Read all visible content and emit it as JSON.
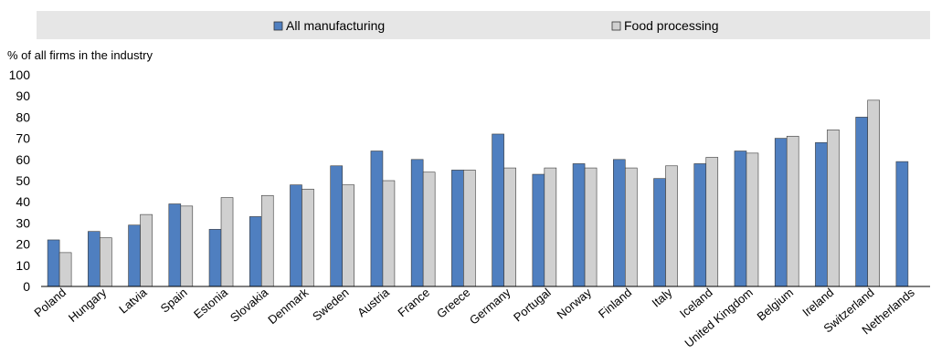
{
  "chart_data": {
    "type": "bar",
    "ylabel": "% of all firms in the industry",
    "ylim": [
      0,
      100
    ],
    "yticks": [
      0,
      10,
      20,
      30,
      40,
      50,
      60,
      70,
      80,
      90,
      100
    ],
    "grid": false,
    "legend_position": "top-center",
    "categories": [
      "Poland",
      "Hungary",
      "Latvia",
      "Spain",
      "Estonia",
      "Slovakia",
      "Denmark",
      "Sweden",
      "Austria",
      "France",
      "Greece",
      "Germany",
      "Portugal",
      "Norway",
      "Finland",
      "Italy",
      "Iceland",
      "United Kingdom",
      "Belgium",
      "Ireland",
      "Switzerland",
      "Netherlands"
    ],
    "series": [
      {
        "name": "All manufacturing",
        "color": "#4f7fc0",
        "values": [
          22,
          26,
          29,
          39,
          27,
          33,
          48,
          57,
          64,
          60,
          55,
          72,
          53,
          58,
          60,
          51,
          58,
          64,
          70,
          68,
          80,
          59
        ]
      },
      {
        "name": "Food processing",
        "color": "#d0d0d0",
        "values": [
          16,
          23,
          34,
          38,
          42,
          43,
          46,
          48,
          50,
          54,
          55,
          56,
          56,
          56,
          56,
          57,
          61,
          63,
          71,
          74,
          88,
          null
        ]
      }
    ]
  }
}
